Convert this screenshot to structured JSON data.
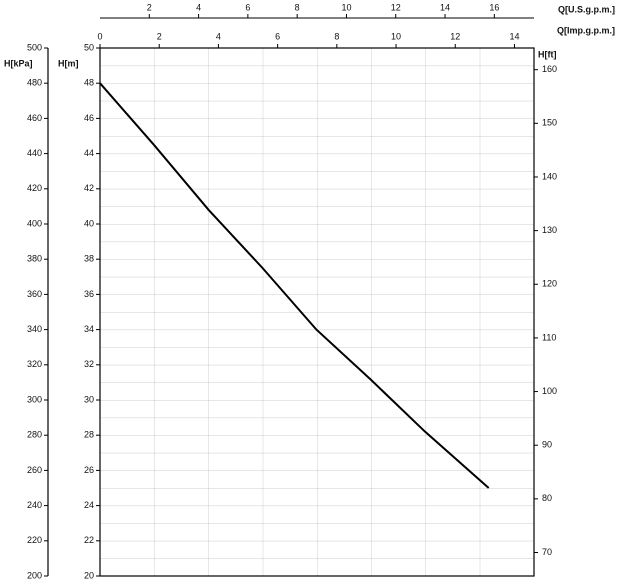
{
  "chart_data": {
    "type": "line",
    "xlabel": "Q[Imp.g.p.m.]",
    "xlim": [
      0,
      14.66
    ],
    "xticks": [
      0,
      2,
      4,
      6,
      8,
      10,
      12,
      14
    ],
    "ylabel": "H[m]",
    "ylim": [
      20,
      50
    ],
    "yticks": [
      20,
      22,
      24,
      26,
      28,
      30,
      32,
      34,
      36,
      38,
      40,
      42,
      44,
      46,
      48,
      50
    ],
    "x": [
      0,
      1.82,
      3.67,
      5.49,
      7.31,
      9.12,
      10.98,
      13.13
    ],
    "series": [
      {
        "color": "#000000",
        "values": [
          48,
          44.5,
          40.8,
          37.5,
          34,
          31.2,
          28.2,
          25
        ]
      }
    ],
    "extra_axes": [
      {
        "position": "top",
        "label": "Q[U.S.g.p.m.]",
        "lim": [
          0,
          17.61
        ],
        "ticks": [
          2,
          4,
          6,
          8,
          10,
          12,
          14,
          16
        ]
      },
      {
        "position": "left",
        "label": "H[kPa]",
        "lim": [
          200,
          500
        ],
        "ticks": [
          200,
          220,
          240,
          260,
          280,
          300,
          320,
          340,
          360,
          380,
          400,
          420,
          440,
          460,
          480,
          500
        ]
      },
      {
        "position": "right",
        "label": "H[ft]",
        "lim": [
          65.62,
          164.04
        ],
        "ticks": [
          70,
          80,
          90,
          100,
          110,
          120,
          130,
          140,
          150,
          160
        ]
      }
    ]
  }
}
